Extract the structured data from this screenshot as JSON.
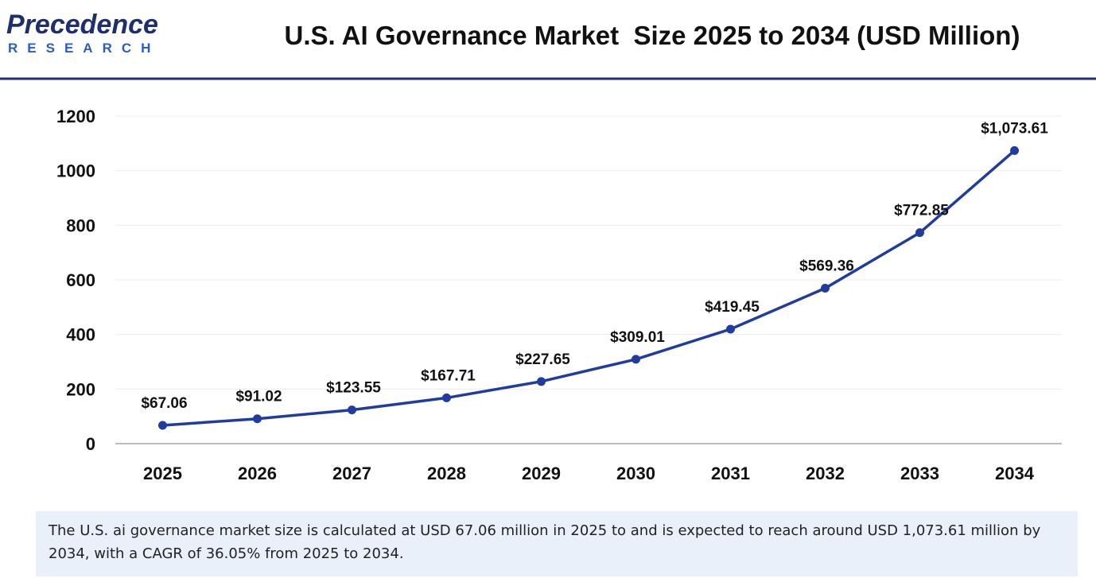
{
  "logo": {
    "name": "Precedence",
    "tagline": "RESEARCH"
  },
  "chart_data": {
    "type": "line",
    "title": "U.S. AI Governance Market  Size 2025 to 2034 (USD Million)",
    "categories": [
      "2025",
      "2026",
      "2027",
      "2028",
      "2029",
      "2030",
      "2031",
      "2032",
      "2033",
      "2034"
    ],
    "values": [
      67.06,
      91.02,
      123.55,
      167.71,
      227.65,
      309.01,
      419.45,
      569.36,
      772.85,
      1073.61
    ],
    "value_labels": [
      "$67.06",
      "$91.02",
      "$123.55",
      "$167.71",
      "$227.65",
      "$309.01",
      "$419.45",
      "$569.36",
      "$772.85",
      "$1,073.61"
    ],
    "color": "#1f3c9e",
    "ylim": [
      0,
      1200
    ],
    "yticks": [
      0,
      200,
      400,
      600,
      800,
      1000,
      1200
    ],
    "grid": true
  },
  "caption": "The U.S. ai governance market size is calculated at USD 67.06 million in 2025 to and is expected to reach around USD 1,073.61 million by 2034, with a CAGR of 36.05% from 2025 to 2034."
}
